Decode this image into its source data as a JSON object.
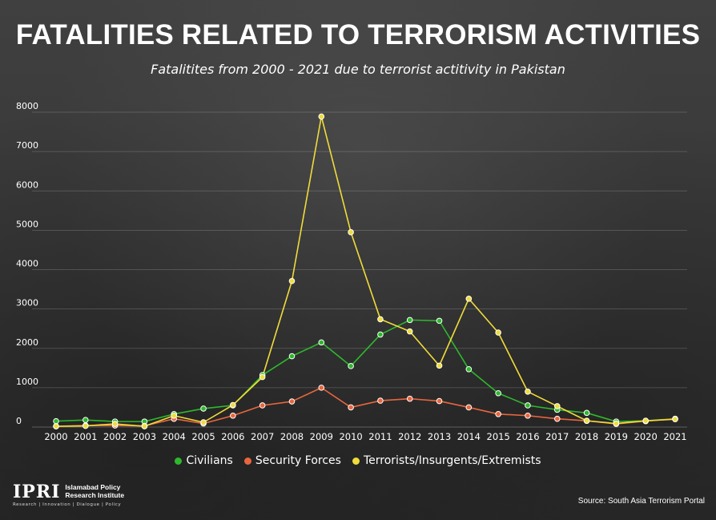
{
  "title": "FATALITIES RELATED TO TERRORISM ACTIVITIES",
  "subtitle": "Fatalitites from 2000 - 2021 due to terrorist actitivity in Pakistan",
  "source": "Source: South Asia Terrorism Portal",
  "logo": {
    "mark": "IPRI",
    "name": "Islamabad Policy Research Institute",
    "tagline": "Research | Innovation | Dialogue | Policy"
  },
  "chart_data": {
    "type": "line",
    "title": "FATALITIES RELATED TO TERRORISM ACTIVITIES",
    "subtitle": "Fatalitites from 2000 - 2021 due to terrorist actitivity in Pakistan",
    "xlabel": "",
    "ylabel": "",
    "ylim": [
      0,
      8000
    ],
    "yticks": [
      0,
      1000,
      2000,
      3000,
      4000,
      5000,
      6000,
      7000,
      8000
    ],
    "grid": "horizontal",
    "legend_position": "bottom",
    "categories": [
      "2000",
      "2001",
      "2002",
      "2003",
      "2004",
      "2005",
      "2006",
      "2007",
      "2008",
      "2009",
      "2010",
      "2011",
      "2012",
      "2013",
      "2014",
      "2015",
      "2016",
      "2017",
      "2018",
      "2019",
      "2020",
      "2021"
    ],
    "series": [
      {
        "name": "Civilians",
        "color": "#2db82d",
        "values": [
          150,
          180,
          140,
          140,
          330,
          470,
          550,
          1320,
          1800,
          2150,
          1550,
          2350,
          2720,
          2700,
          1470,
          860,
          550,
          440,
          360,
          140,
          160,
          210
        ]
      },
      {
        "name": "Security Forces",
        "color": "#e8663e",
        "values": [
          20,
          40,
          40,
          30,
          210,
          90,
          290,
          550,
          650,
          1000,
          500,
          670,
          720,
          660,
          500,
          330,
          290,
          210,
          160,
          80,
          150,
          210
        ]
      },
      {
        "name": "Terrorists/Insurgents/Extremists",
        "color": "#f0dc3a",
        "values": [
          20,
          30,
          80,
          20,
          290,
          120,
          560,
          1270,
          3710,
          7890,
          4950,
          2740,
          2430,
          1560,
          3260,
          2400,
          900,
          530,
          160,
          90,
          160,
          200
        ]
      }
    ]
  }
}
